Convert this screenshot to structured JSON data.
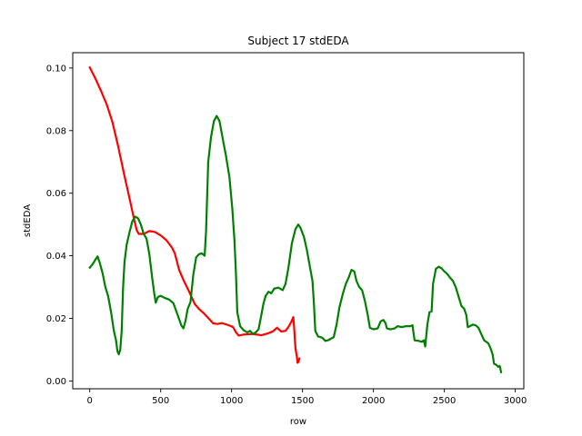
{
  "chart_data": {
    "type": "line",
    "title": "Subject 17 stdEDA",
    "xlabel": "row",
    "ylabel": "stdEDA",
    "xlim": [
      -120,
      3060
    ],
    "ylim": [
      -0.0025,
      0.1049
    ],
    "grid": false,
    "x_ticks": [
      0,
      500,
      1000,
      1500,
      2000,
      2500,
      3000
    ],
    "x_tick_labels": [
      "0",
      "500",
      "1000",
      "1500",
      "2000",
      "2500",
      "3000"
    ],
    "y_ticks": [
      0.0,
      0.02,
      0.04,
      0.06,
      0.08,
      0.1
    ],
    "y_tick_labels": [
      "0.00",
      "0.02",
      "0.04",
      "0.06",
      "0.08",
      "0.10"
    ],
    "series": [
      {
        "color": "#ff0000",
        "points": [
          [
            0,
            0.1002
          ],
          [
            40,
            0.0966
          ],
          [
            80,
            0.0926
          ],
          [
            120,
            0.0883
          ],
          [
            160,
            0.0827
          ],
          [
            200,
            0.075
          ],
          [
            240,
            0.0665
          ],
          [
            280,
            0.0584
          ],
          [
            310,
            0.0522
          ],
          [
            330,
            0.0483
          ],
          [
            345,
            0.047
          ],
          [
            380,
            0.047
          ],
          [
            420,
            0.0479
          ],
          [
            460,
            0.0476
          ],
          [
            500,
            0.0465
          ],
          [
            540,
            0.045
          ],
          [
            580,
            0.0426
          ],
          [
            600,
            0.0407
          ],
          [
            630,
            0.0355
          ],
          [
            660,
            0.0323
          ],
          [
            700,
            0.0286
          ],
          [
            740,
            0.0246
          ],
          [
            770,
            0.023
          ],
          [
            800,
            0.0218
          ],
          [
            840,
            0.0199
          ],
          [
            870,
            0.0184
          ],
          [
            900,
            0.0182
          ],
          [
            930,
            0.0185
          ],
          [
            960,
            0.0181
          ],
          [
            990,
            0.0176
          ],
          [
            1010,
            0.0172
          ],
          [
            1030,
            0.0156
          ],
          [
            1050,
            0.0145
          ],
          [
            1080,
            0.0148
          ],
          [
            1110,
            0.0149
          ],
          [
            1150,
            0.015
          ],
          [
            1180,
            0.0148
          ],
          [
            1210,
            0.0146
          ],
          [
            1250,
            0.0151
          ],
          [
            1290,
            0.0158
          ],
          [
            1320,
            0.017
          ],
          [
            1350,
            0.0158
          ],
          [
            1380,
            0.016
          ],
          [
            1400,
            0.0172
          ],
          [
            1420,
            0.0188
          ],
          [
            1435,
            0.0204
          ],
          [
            1440,
            0.0175
          ],
          [
            1450,
            0.0105
          ],
          [
            1460,
            0.0078
          ],
          [
            1465,
            0.0058
          ],
          [
            1472,
            0.0062
          ],
          [
            1478,
            0.0072
          ]
        ]
      },
      {
        "color": "#008000",
        "points": [
          [
            0,
            0.0362
          ],
          [
            20,
            0.0373
          ],
          [
            40,
            0.0388
          ],
          [
            55,
            0.0398
          ],
          [
            70,
            0.0378
          ],
          [
            90,
            0.0345
          ],
          [
            110,
            0.03
          ],
          [
            130,
            0.027
          ],
          [
            150,
            0.022
          ],
          [
            170,
            0.016
          ],
          [
            185,
            0.013
          ],
          [
            195,
            0.0095
          ],
          [
            205,
            0.0085
          ],
          [
            215,
            0.01
          ],
          [
            225,
            0.016
          ],
          [
            235,
            0.03
          ],
          [
            245,
            0.038
          ],
          [
            260,
            0.0435
          ],
          [
            280,
            0.0475
          ],
          [
            300,
            0.051
          ],
          [
            320,
            0.0525
          ],
          [
            340,
            0.052
          ],
          [
            360,
            0.05
          ],
          [
            380,
            0.047
          ],
          [
            400,
            0.0455
          ],
          [
            420,
            0.0405
          ],
          [
            440,
            0.033
          ],
          [
            455,
            0.0278
          ],
          [
            465,
            0.025
          ],
          [
            480,
            0.0268
          ],
          [
            500,
            0.0272
          ],
          [
            530,
            0.0265
          ],
          [
            560,
            0.026
          ],
          [
            590,
            0.0248
          ],
          [
            620,
            0.021
          ],
          [
            645,
            0.0178
          ],
          [
            660,
            0.0168
          ],
          [
            675,
            0.0192
          ],
          [
            690,
            0.023
          ],
          [
            710,
            0.0252
          ],
          [
            730,
            0.034
          ],
          [
            750,
            0.0395
          ],
          [
            770,
            0.0405
          ],
          [
            790,
            0.0408
          ],
          [
            810,
            0.04
          ],
          [
            820,
            0.048
          ],
          [
            835,
            0.07
          ],
          [
            855,
            0.078
          ],
          [
            875,
            0.083
          ],
          [
            895,
            0.0847
          ],
          [
            915,
            0.083
          ],
          [
            935,
            0.078
          ],
          [
            960,
            0.072
          ],
          [
            985,
            0.065
          ],
          [
            1005,
            0.055
          ],
          [
            1020,
            0.045
          ],
          [
            1030,
            0.035
          ],
          [
            1040,
            0.022
          ],
          [
            1060,
            0.0175
          ],
          [
            1085,
            0.0162
          ],
          [
            1110,
            0.0155
          ],
          [
            1130,
            0.016
          ],
          [
            1150,
            0.015
          ],
          [
            1170,
            0.0155
          ],
          [
            1190,
            0.0165
          ],
          [
            1205,
            0.02
          ],
          [
            1225,
            0.0248
          ],
          [
            1240,
            0.0272
          ],
          [
            1260,
            0.0285
          ],
          [
            1280,
            0.028
          ],
          [
            1300,
            0.0295
          ],
          [
            1330,
            0.0298
          ],
          [
            1360,
            0.029
          ],
          [
            1380,
            0.031
          ],
          [
            1400,
            0.036
          ],
          [
            1425,
            0.044
          ],
          [
            1450,
            0.0485
          ],
          [
            1470,
            0.05
          ],
          [
            1485,
            0.049
          ],
          [
            1510,
            0.046
          ],
          [
            1530,
            0.042
          ],
          [
            1550,
            0.037
          ],
          [
            1570,
            0.032
          ],
          [
            1580,
            0.025
          ],
          [
            1590,
            0.016
          ],
          [
            1610,
            0.0142
          ],
          [
            1640,
            0.0138
          ],
          [
            1660,
            0.0128
          ],
          [
            1680,
            0.013
          ],
          [
            1700,
            0.0135
          ],
          [
            1720,
            0.014
          ],
          [
            1740,
            0.018
          ],
          [
            1760,
            0.0235
          ],
          [
            1785,
            0.028
          ],
          [
            1805,
            0.031
          ],
          [
            1825,
            0.033
          ],
          [
            1845,
            0.0355
          ],
          [
            1865,
            0.035
          ],
          [
            1880,
            0.032
          ],
          [
            1900,
            0.03
          ],
          [
            1920,
            0.029
          ],
          [
            1940,
            0.0255
          ],
          [
            1960,
            0.021
          ],
          [
            1975,
            0.017
          ],
          [
            2000,
            0.0165
          ],
          [
            2030,
            0.0168
          ],
          [
            2050,
            0.019
          ],
          [
            2070,
            0.0195
          ],
          [
            2085,
            0.0185
          ],
          [
            2095,
            0.0168
          ],
          [
            2120,
            0.0165
          ],
          [
            2150,
            0.0168
          ],
          [
            2170,
            0.0175
          ],
          [
            2200,
            0.0172
          ],
          [
            2230,
            0.0175
          ],
          [
            2260,
            0.0175
          ],
          [
            2275,
            0.0178
          ],
          [
            2290,
            0.013
          ],
          [
            2320,
            0.0128
          ],
          [
            2340,
            0.0125
          ],
          [
            2355,
            0.013
          ],
          [
            2365,
            0.011
          ],
          [
            2380,
            0.018
          ],
          [
            2395,
            0.022
          ],
          [
            2410,
            0.0222
          ],
          [
            2420,
            0.031
          ],
          [
            2440,
            0.0358
          ],
          [
            2460,
            0.0365
          ],
          [
            2480,
            0.036
          ],
          [
            2500,
            0.035
          ],
          [
            2520,
            0.0342
          ],
          [
            2540,
            0.033
          ],
          [
            2560,
            0.032
          ],
          [
            2580,
            0.03
          ],
          [
            2600,
            0.027
          ],
          [
            2620,
            0.024
          ],
          [
            2640,
            0.023
          ],
          [
            2655,
            0.021
          ],
          [
            2665,
            0.0172
          ],
          [
            2680,
            0.0175
          ],
          [
            2700,
            0.018
          ],
          [
            2720,
            0.0178
          ],
          [
            2740,
            0.017
          ],
          [
            2760,
            0.015
          ],
          [
            2780,
            0.013
          ],
          [
            2795,
            0.0125
          ],
          [
            2810,
            0.012
          ],
          [
            2825,
            0.0105
          ],
          [
            2840,
            0.0085
          ],
          [
            2850,
            0.0055
          ],
          [
            2865,
            0.0052
          ],
          [
            2880,
            0.0045
          ],
          [
            2890,
            0.0048
          ],
          [
            2900,
            0.0028
          ]
        ]
      }
    ]
  }
}
